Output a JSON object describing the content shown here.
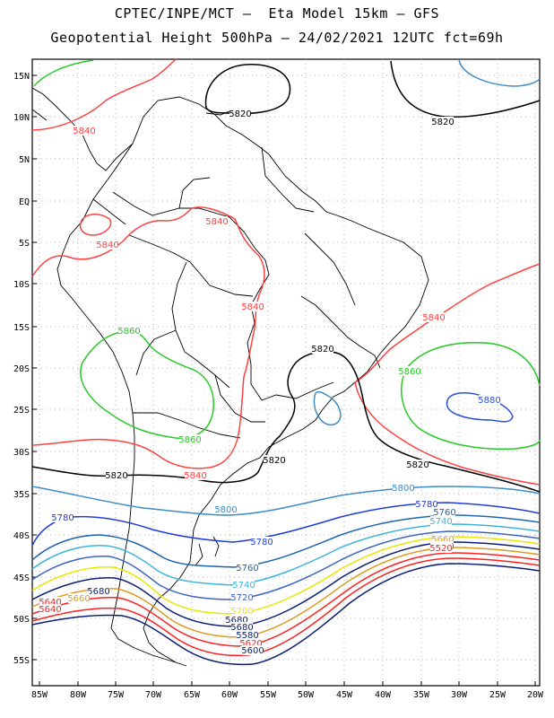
{
  "title_line1": "CPTEC/INPE/MCT –  Eta Model 15km – GFS",
  "title_line2": "Geopotential Height 500hPa – 24/02/2021 12UTC fct=69h",
  "lat_labels": [
    "15N",
    "10N",
    "5N",
    "EQ",
    "5S",
    "10S",
    "15S",
    "20S",
    "25S",
    "30S",
    "35S",
    "40S",
    "45S",
    "50S",
    "55S"
  ],
  "lon_labels": [
    "85W",
    "80W",
    "75W",
    "70W",
    "65W",
    "60W",
    "55W",
    "50W",
    "45W",
    "40W",
    "35W",
    "30W",
    "25W",
    "20W"
  ],
  "contour_colors": {
    "5520": "#ff2020",
    "5580": "#0a1e78",
    "5600": "#0a1e78",
    "5620": "#ff2020",
    "5640": "#ff2020",
    "5660": "#e09a20",
    "5680": "#0a1e78",
    "5700": "#e8e800",
    "5720": "#3c64c8",
    "5740": "#3cb4dc",
    "5760": "#1e64b4",
    "5780": "#1e3cdc",
    "5800": "#3c8cc8",
    "5820": "#000000",
    "5840": "#ff4040",
    "5860": "#28c828",
    "5880": "#2850dc"
  },
  "contour_labels": [
    {
      "text": "5820",
      "color": "#000000"
    },
    {
      "text": "5820",
      "color": "#000000"
    },
    {
      "text": "5840",
      "color": "#ff4040"
    },
    {
      "text": "5840",
      "color": "#ff4040"
    },
    {
      "text": "5840",
      "color": "#ff4040"
    },
    {
      "text": "5840",
      "color": "#ff4040"
    },
    {
      "text": "5840",
      "color": "#ff4040"
    },
    {
      "text": "5860",
      "color": "#28c828"
    },
    {
      "text": "5860",
      "color": "#28c828"
    },
    {
      "text": "5860",
      "color": "#28c828"
    },
    {
      "text": "5880",
      "color": "#2850dc"
    },
    {
      "text": "5820",
      "color": "#000000"
    },
    {
      "text": "5820",
      "color": "#000000"
    },
    {
      "text": "5820",
      "color": "#000000"
    },
    {
      "text": "5840",
      "color": "#ff4040"
    },
    {
      "text": "5820",
      "color": "#000000"
    },
    {
      "text": "5800",
      "color": "#3c8cc8"
    },
    {
      "text": "5800",
      "color": "#3c8cc8"
    },
    {
      "text": "5780",
      "color": "#1e3cdc"
    },
    {
      "text": "5780",
      "color": "#1e3cdc"
    },
    {
      "text": "5780",
      "color": "#1e3cdc"
    },
    {
      "text": "5760",
      "color": "#1e64b4"
    },
    {
      "text": "5760",
      "color": "#1e64b4"
    },
    {
      "text": "5740",
      "color": "#3cb4dc"
    },
    {
      "text": "5740",
      "color": "#3cb4dc"
    },
    {
      "text": "5720",
      "color": "#3c64c8"
    },
    {
      "text": "5700",
      "color": "#e8e800"
    },
    {
      "text": "5680",
      "color": "#0a1e78"
    },
    {
      "text": "5680",
      "color": "#0a1e78"
    },
    {
      "text": "5660",
      "color": "#e09a20"
    },
    {
      "text": "5660",
      "color": "#e09a20"
    },
    {
      "text": "5640",
      "color": "#ff2020"
    },
    {
      "text": "5640",
      "color": "#ff2020"
    },
    {
      "text": "5620",
      "color": "#ff2020"
    },
    {
      "text": "5600",
      "color": "#0a1e78"
    },
    {
      "text": "5580",
      "color": "#0a1e78"
    },
    {
      "text": "5520",
      "color": "#ff2020"
    },
    {
      "text": "5680",
      "color": "#0a1e78"
    },
    {
      "text": "5640",
      "color": "#ff2020"
    }
  ]
}
